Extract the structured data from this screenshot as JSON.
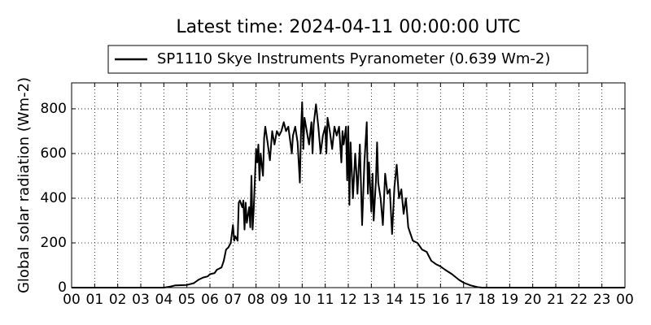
{
  "chart_data": {
    "type": "line",
    "title": "Latest time: 2024-04-11 00:00:00 UTC",
    "y_label": "Global solar radiation (Wm-2)",
    "x": [
      0,
      4.0,
      4.3,
      4.5,
      5.0,
      5.3,
      5.5,
      5.7,
      5.9,
      6.0,
      6.2,
      6.3,
      6.5,
      6.6,
      6.7,
      6.8,
      6.9,
      7.0,
      7.05,
      7.1,
      7.2,
      7.25,
      7.3,
      7.4,
      7.45,
      7.5,
      7.55,
      7.6,
      7.7,
      7.75,
      7.8,
      7.85,
      7.9,
      8.0,
      8.05,
      8.1,
      8.15,
      8.2,
      8.3,
      8.35,
      8.4,
      8.5,
      8.6,
      8.7,
      8.8,
      8.9,
      9.0,
      9.1,
      9.2,
      9.3,
      9.4,
      9.5,
      9.55,
      9.6,
      9.7,
      9.8,
      9.9,
      9.95,
      10.0,
      10.05,
      10.1,
      10.2,
      10.3,
      10.4,
      10.45,
      10.5,
      10.6,
      10.7,
      10.8,
      10.9,
      11.0,
      11.05,
      11.1,
      11.2,
      11.3,
      11.4,
      11.5,
      11.6,
      11.7,
      11.75,
      11.8,
      11.9,
      11.95,
      12.0,
      12.05,
      12.1,
      12.2,
      12.3,
      12.35,
      12.4,
      12.5,
      12.6,
      12.7,
      12.8,
      12.85,
      12.9,
      13.0,
      13.05,
      13.1,
      13.2,
      13.25,
      13.3,
      13.4,
      13.5,
      13.6,
      13.7,
      13.8,
      13.9,
      14.0,
      14.1,
      14.2,
      14.3,
      14.4,
      14.5,
      14.6,
      14.7,
      14.8,
      15.0,
      15.2,
      15.4,
      15.6,
      15.8,
      16.0,
      16.2,
      16.5,
      16.8,
      17.0,
      17.3,
      17.6,
      17.8,
      24.0
    ],
    "series": [
      {
        "name": "SP1110 Skye Instruments Pyranometer (0.639 Wm-2)",
        "color": "#000000",
        "values": [
          0,
          0,
          5,
          10,
          12,
          20,
          35,
          45,
          50,
          60,
          65,
          80,
          90,
          120,
          170,
          180,
          200,
          280,
          210,
          230,
          210,
          380,
          390,
          360,
          390,
          260,
          380,
          290,
          360,
          270,
          500,
          260,
          350,
          620,
          560,
          640,
          480,
          600,
          500,
          670,
          720,
          650,
          570,
          700,
          640,
          700,
          680,
          700,
          740,
          700,
          720,
          640,
          600,
          680,
          720,
          650,
          470,
          700,
          830,
          620,
          760,
          700,
          640,
          740,
          600,
          730,
          820,
          720,
          600,
          680,
          720,
          600,
          760,
          700,
          620,
          720,
          680,
          720,
          560,
          700,
          640,
          720,
          480,
          720,
          370,
          650,
          400,
          600,
          520,
          420,
          640,
          280,
          560,
          740,
          420,
          560,
          340,
          510,
          300,
          480,
          650,
          470,
          400,
          280,
          510,
          420,
          440,
          240,
          450,
          550,
          400,
          440,
          330,
          400,
          270,
          240,
          210,
          200,
          170,
          160,
          120,
          105,
          95,
          80,
          60,
          35,
          22,
          10,
          2,
          0,
          0
        ]
      }
    ],
    "xlim": [
      0,
      24
    ],
    "xticks": [
      {
        "value": 0,
        "label": "00"
      },
      {
        "value": 1,
        "label": "01"
      },
      {
        "value": 2,
        "label": "02"
      },
      {
        "value": 3,
        "label": "03"
      },
      {
        "value": 4,
        "label": "04"
      },
      {
        "value": 5,
        "label": "05"
      },
      {
        "value": 6,
        "label": "06"
      },
      {
        "value": 7,
        "label": "07"
      },
      {
        "value": 8,
        "label": "08"
      },
      {
        "value": 9,
        "label": "09"
      },
      {
        "value": 10,
        "label": "10"
      },
      {
        "value": 11,
        "label": "11"
      },
      {
        "value": 12,
        "label": "12"
      },
      {
        "value": 13,
        "label": "13"
      },
      {
        "value": 14,
        "label": "14"
      },
      {
        "value": 15,
        "label": "15"
      },
      {
        "value": 16,
        "label": "16"
      },
      {
        "value": 17,
        "label": "17"
      },
      {
        "value": 18,
        "label": "18"
      },
      {
        "value": 19,
        "label": "19"
      },
      {
        "value": 20,
        "label": "20"
      },
      {
        "value": 21,
        "label": "21"
      },
      {
        "value": 22,
        "label": "22"
      },
      {
        "value": 23,
        "label": "23"
      },
      {
        "value": 24,
        "label": "00"
      }
    ],
    "ylim": [
      0,
      916
    ],
    "yticks": [
      0,
      200,
      400,
      600,
      800
    ],
    "grid": true
  }
}
